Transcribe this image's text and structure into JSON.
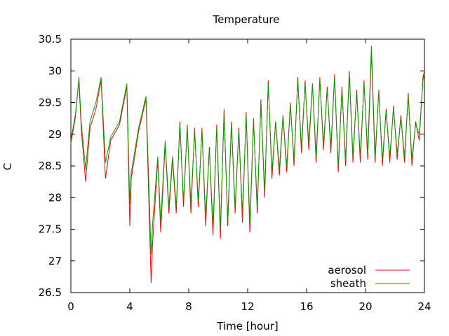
{
  "chart_data": {
    "type": "line",
    "title": "Temperature",
    "xlabel": "Time [hour]",
    "ylabel": "C",
    "xlim": [
      0,
      24
    ],
    "ylim": [
      26.5,
      30.5
    ],
    "xticks": [
      0,
      4,
      8,
      12,
      16,
      20,
      24
    ],
    "xtick_labels": [
      "0",
      "4",
      "8",
      "12",
      "16",
      "20",
      "24"
    ],
    "yticks": [
      26.5,
      27,
      27.5,
      28,
      28.5,
      29,
      29.5,
      30,
      30.5
    ],
    "ytick_labels": [
      "26.5",
      "27",
      "27.5",
      "28",
      "28.5",
      "29",
      "29.5",
      "30",
      "30.5"
    ],
    "grid": false,
    "legend": "bottom-right",
    "series": [
      {
        "name": "aerosol",
        "color": "#ff0000",
        "x": [
          0,
          0.3,
          0.55,
          0.7,
          1.0,
          1.3,
          1.7,
          2.05,
          2.35,
          2.7,
          3.3,
          3.8,
          4.0,
          4.1,
          4.6,
          5.1,
          5.45,
          5.55,
          5.9,
          6.1,
          6.4,
          6.65,
          6.9,
          7.15,
          7.4,
          7.65,
          7.9,
          8.15,
          8.4,
          8.65,
          8.9,
          9.15,
          9.4,
          9.65,
          9.9,
          10.15,
          10.4,
          10.65,
          10.9,
          11.15,
          11.4,
          11.65,
          11.9,
          12.15,
          12.4,
          12.65,
          12.9,
          13.15,
          13.4,
          13.65,
          13.9,
          14.15,
          14.4,
          14.65,
          14.9,
          15.15,
          15.4,
          15.65,
          15.9,
          16.15,
          16.4,
          16.65,
          16.9,
          17.15,
          17.4,
          17.65,
          17.9,
          18.15,
          18.4,
          18.65,
          18.9,
          19.15,
          19.4,
          19.65,
          19.9,
          20.15,
          20.4,
          20.65,
          20.9,
          21.15,
          21.4,
          21.65,
          21.9,
          22.15,
          22.4,
          22.65,
          22.9,
          23.15,
          23.4,
          23.65,
          23.9,
          24.0
        ],
        "y": [
          28.9,
          29.3,
          29.85,
          29.1,
          28.25,
          29.1,
          29.4,
          29.85,
          28.3,
          28.9,
          29.15,
          29.75,
          27.55,
          28.3,
          29.05,
          29.55,
          26.65,
          27.3,
          28.6,
          27.45,
          28.85,
          27.75,
          28.6,
          27.75,
          29.2,
          27.85,
          29.15,
          27.75,
          29.1,
          27.85,
          29.1,
          27.55,
          28.8,
          27.4,
          29.15,
          27.35,
          29.4,
          27.55,
          29.2,
          27.75,
          29.1,
          27.6,
          29.35,
          27.45,
          29.25,
          27.75,
          29.55,
          28.0,
          29.85,
          28.3,
          29.2,
          28.35,
          29.3,
          28.4,
          29.5,
          28.5,
          29.9,
          28.7,
          29.85,
          28.75,
          29.8,
          28.55,
          29.9,
          28.75,
          29.75,
          28.7,
          29.95,
          28.4,
          29.75,
          28.5,
          30.0,
          28.55,
          29.7,
          28.55,
          29.85,
          28.6,
          30.3,
          28.55,
          29.7,
          28.5,
          29.4,
          28.55,
          29.45,
          28.6,
          29.3,
          28.55,
          29.65,
          28.5,
          29.2,
          28.9,
          29.9,
          30.0
        ]
      },
      {
        "name": "sheath",
        "color": "#00a000",
        "x": [
          0,
          0.3,
          0.55,
          0.7,
          1.0,
          1.3,
          1.7,
          2.05,
          2.35,
          2.7,
          3.3,
          3.8,
          4.0,
          4.1,
          4.6,
          5.1,
          5.45,
          5.55,
          5.9,
          6.1,
          6.4,
          6.65,
          6.9,
          7.15,
          7.4,
          7.65,
          7.9,
          8.15,
          8.4,
          8.65,
          8.9,
          9.15,
          9.4,
          9.65,
          9.9,
          10.15,
          10.4,
          10.65,
          10.9,
          11.15,
          11.4,
          11.65,
          11.9,
          12.15,
          12.4,
          12.65,
          12.9,
          13.15,
          13.4,
          13.65,
          13.9,
          14.15,
          14.4,
          14.65,
          14.9,
          15.15,
          15.4,
          15.65,
          15.9,
          16.15,
          16.4,
          16.65,
          16.9,
          17.15,
          17.4,
          17.65,
          17.9,
          18.15,
          18.4,
          18.65,
          18.9,
          19.15,
          19.4,
          19.65,
          19.9,
          20.15,
          20.4,
          20.65,
          20.9,
          21.15,
          21.4,
          21.65,
          21.9,
          22.15,
          22.4,
          22.65,
          22.9,
          23.15,
          23.4,
          23.65,
          23.9,
          24.0
        ],
        "y": [
          28.85,
          29.25,
          29.9,
          29.2,
          28.45,
          29.2,
          29.5,
          29.9,
          28.55,
          28.95,
          29.2,
          29.8,
          27.9,
          28.4,
          29.1,
          29.6,
          27.1,
          27.6,
          28.65,
          27.6,
          28.9,
          27.85,
          28.65,
          27.85,
          29.15,
          27.95,
          29.1,
          27.9,
          29.05,
          27.95,
          29.05,
          27.7,
          28.75,
          27.55,
          29.1,
          27.5,
          29.35,
          27.65,
          29.15,
          27.85,
          29.05,
          27.75,
          29.3,
          27.6,
          29.2,
          27.85,
          29.5,
          28.1,
          29.8,
          28.4,
          29.2,
          28.45,
          29.3,
          28.5,
          29.45,
          28.6,
          29.85,
          28.8,
          29.8,
          28.85,
          29.8,
          28.65,
          29.85,
          28.85,
          29.7,
          28.8,
          29.9,
          28.5,
          29.7,
          28.6,
          29.95,
          28.65,
          29.65,
          28.65,
          29.8,
          28.7,
          30.4,
          28.65,
          29.65,
          28.6,
          29.35,
          28.65,
          29.4,
          28.7,
          29.25,
          28.65,
          29.6,
          28.6,
          29.15,
          29.0,
          29.85,
          29.95
        ]
      }
    ]
  }
}
